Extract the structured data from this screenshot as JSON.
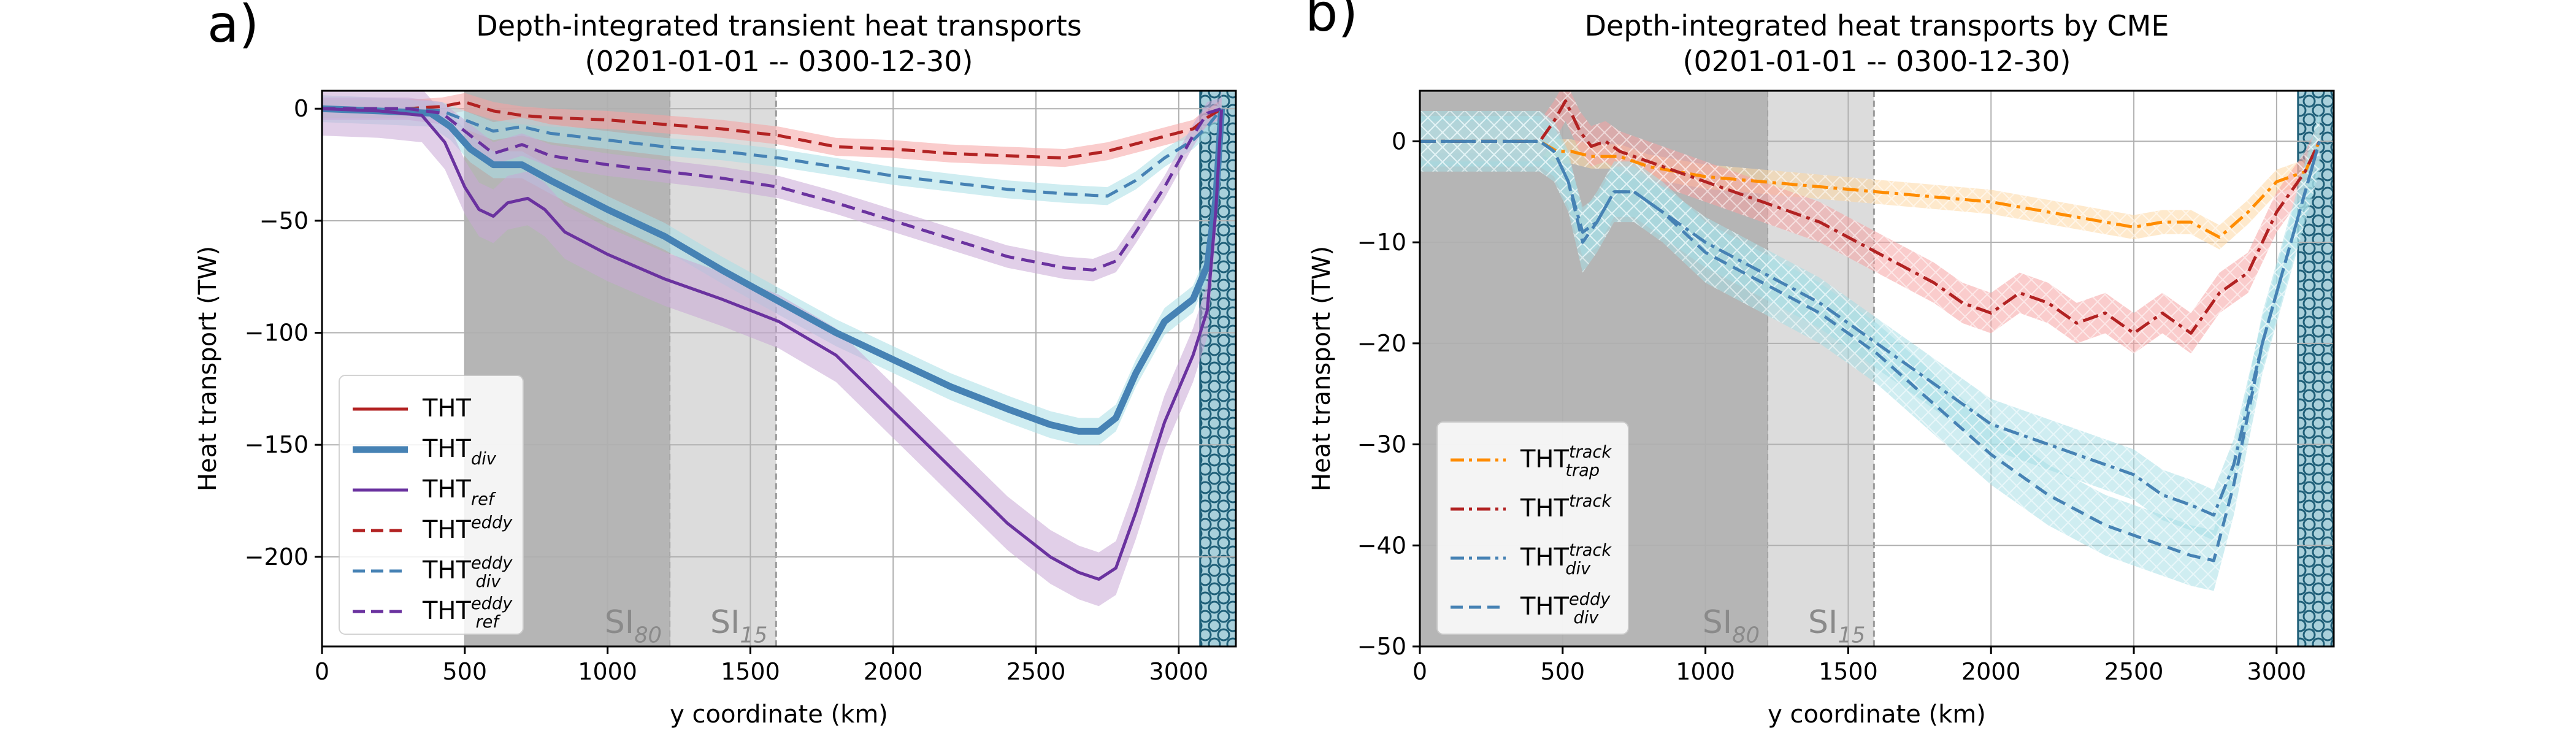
{
  "figure": {
    "panel_a_letter": "a)",
    "panel_b_letter": "b)"
  },
  "colors": {
    "red": "#b22222",
    "blue": "#4682b4",
    "purple": "#6a329f",
    "orange": "#ff8c00",
    "band_red": "#f6a3a3",
    "band_blue": "#a8dfe6",
    "band_purple": "#c9a7d6",
    "band_orange": "#fdd7a3",
    "ice_dark": "#b5b5b5",
    "ice_light": "#dcdcdc",
    "hatch": "#2f6f86"
  },
  "chart_data": [
    {
      "type": "line",
      "title": "Depth-integrated transient heat transports",
      "subtitle": "(0201-01-01 -- 0300-12-30)",
      "xlabel": "y coordinate (km)",
      "ylabel": "Heat transport (TW)",
      "xlim": [
        0,
        3200
      ],
      "ylim": [
        -240,
        8
      ],
      "xticks": [
        "0",
        "500",
        "1000",
        "1500",
        "2000",
        "2500",
        "3000"
      ],
      "yticks": [
        "0",
        "−50",
        "−100",
        "−150",
        "−200"
      ],
      "grid": true,
      "legend_position": "lower-left",
      "shaded_regions": [
        {
          "label": "SI",
          "label_sub": "80",
          "x_start": 500,
          "x_end": 1220,
          "shade": "dark"
        },
        {
          "label": "SI",
          "label_sub": "15",
          "x_start": 1220,
          "x_end": 1590,
          "shade": "light"
        },
        {
          "label": "",
          "x_start": 3075,
          "x_end": 3200,
          "shade": "hatched"
        }
      ],
      "series": [
        {
          "name": "THT",
          "name_sub": "",
          "name_sup": "",
          "color_key": "red",
          "style": "solid",
          "width": "thin",
          "x": [
            0,
            3200
          ],
          "y": [
            0,
            0
          ]
        },
        {
          "name": "THT",
          "name_sub": "div",
          "name_sup": "",
          "color_key": "blue",
          "style": "solid",
          "width": "thick",
          "x": [
            0,
            200,
            380,
            450,
            520,
            600,
            700,
            800,
            1000,
            1200,
            1400,
            1600,
            1800,
            2000,
            2200,
            2400,
            2550,
            2650,
            2720,
            2780,
            2850,
            2950,
            3050,
            3100,
            3130,
            3150
          ],
          "y": [
            0,
            -1,
            -2,
            -8,
            -18,
            -25,
            -25,
            -32,
            -45,
            -57,
            -72,
            -86,
            -100,
            -112,
            -124,
            -134,
            -141,
            -144,
            -144,
            -138,
            -118,
            -95,
            -85,
            -70,
            -40,
            0
          ],
          "band": 6
        },
        {
          "name": "THT",
          "name_sub": "ref",
          "name_sup": "",
          "color_key": "purple",
          "style": "solid",
          "width": "normal",
          "x": [
            0,
            200,
            350,
            430,
            500,
            550,
            600,
            650,
            720,
            780,
            850,
            1000,
            1200,
            1400,
            1600,
            1800,
            2000,
            2200,
            2400,
            2550,
            2650,
            2720,
            2780,
            2850,
            2950,
            3050,
            3100,
            3130,
            3150
          ],
          "y": [
            0,
            -1,
            -3,
            -15,
            -35,
            -45,
            -48,
            -42,
            -40,
            -45,
            -55,
            -65,
            -76,
            -85,
            -95,
            -110,
            -135,
            -160,
            -185,
            -200,
            -207,
            -210,
            -205,
            -180,
            -140,
            -110,
            -90,
            -45,
            0
          ],
          "band": 12
        },
        {
          "name": "THT",
          "name_sub": "",
          "name_sup": "eddy",
          "color_key": "red",
          "style": "dashed",
          "width": "normal",
          "x": [
            0,
            300,
            420,
            500,
            600,
            700,
            800,
            1000,
            1200,
            1400,
            1600,
            1800,
            2000,
            2200,
            2400,
            2600,
            2750,
            2900,
            3050,
            3100,
            3150
          ],
          "y": [
            0,
            0,
            1,
            3,
            -1,
            -3,
            -4,
            -5,
            -7,
            -9,
            -12,
            -17,
            -18,
            -20,
            -21,
            -22,
            -19,
            -14,
            -9,
            -4,
            0
          ],
          "band": 4
        },
        {
          "name": "THT",
          "name_sub": "div",
          "name_sup": "eddy",
          "color_key": "blue",
          "style": "dashed",
          "width": "normal",
          "x": [
            0,
            300,
            420,
            500,
            600,
            700,
            800,
            1000,
            1200,
            1400,
            1600,
            1800,
            2000,
            2200,
            2400,
            2600,
            2750,
            2850,
            2950,
            3050,
            3100,
            3150
          ],
          "y": [
            0,
            0,
            -1,
            -5,
            -10,
            -8,
            -11,
            -14,
            -17,
            -19,
            -22,
            -26,
            -30,
            -33,
            -36,
            -38,
            -39,
            -32,
            -22,
            -14,
            -8,
            0
          ],
          "band": 4
        },
        {
          "name": "THT",
          "name_sub": "ref",
          "name_sup": "eddy",
          "color_key": "purple",
          "style": "dashed",
          "width": "normal",
          "x": [
            0,
            300,
            420,
            500,
            600,
            700,
            800,
            1000,
            1200,
            1400,
            1600,
            1800,
            2000,
            2200,
            2400,
            2600,
            2700,
            2780,
            2850,
            2950,
            3050,
            3100,
            3150
          ],
          "y": [
            0,
            0,
            -2,
            -10,
            -20,
            -16,
            -21,
            -25,
            -28,
            -31,
            -35,
            -42,
            -50,
            -58,
            -66,
            -71,
            -72,
            -68,
            -55,
            -35,
            -12,
            -2,
            0
          ],
          "band": 5
        }
      ]
    },
    {
      "type": "line",
      "title": "Depth-integrated heat transports by CME",
      "subtitle": "(0201-01-01 -- 0300-12-30)",
      "xlabel": "y coordinate (km)",
      "ylabel": "Heat transport (TW)",
      "xlim": [
        0,
        3200
      ],
      "ylim": [
        -50,
        5
      ],
      "xticks": [
        "0",
        "500",
        "1000",
        "1500",
        "2000",
        "2500",
        "3000"
      ],
      "yticks": [
        "0",
        "−10",
        "−20",
        "−30",
        "−40",
        "−50"
      ],
      "grid": true,
      "legend_position": "lower-left",
      "shaded_regions": [
        {
          "label": "SI",
          "label_sub": "80",
          "x_start": 0,
          "x_end": 1220,
          "shade": "dark"
        },
        {
          "label": "SI",
          "label_sub": "15",
          "x_start": 1220,
          "x_end": 1590,
          "shade": "light"
        },
        {
          "label": "",
          "x_start": 3075,
          "x_end": 3200,
          "shade": "hatched"
        }
      ],
      "series": [
        {
          "name": "THT",
          "name_sub": "trap",
          "name_sup": "track",
          "color_key": "orange",
          "style": "dashdot",
          "width": "normal",
          "x": [
            0,
            350,
            420,
            480,
            530,
            600,
            700,
            800,
            1000,
            1200,
            1400,
            1600,
            1800,
            2000,
            2200,
            2400,
            2500,
            2600,
            2700,
            2800,
            2900,
            3000,
            3100,
            3150
          ],
          "y": [
            0,
            0,
            0,
            -1,
            -1,
            -1.5,
            -1.5,
            -2.5,
            -3.5,
            -4,
            -4.5,
            -5,
            -5.5,
            -6,
            -7,
            -8,
            -8.5,
            -8,
            -8,
            -9.5,
            -7,
            -4,
            -3,
            0
          ],
          "band": 1.2
        },
        {
          "name": "THT",
          "name_sup": "track",
          "name_sub": "",
          "color_key": "red",
          "style": "dashdot",
          "width": "normal",
          "x": [
            0,
            350,
            420,
            470,
            510,
            560,
            600,
            650,
            700,
            800,
            1000,
            1200,
            1400,
            1600,
            1800,
            1900,
            2000,
            2100,
            2200,
            2300,
            2400,
            2500,
            2600,
            2700,
            2800,
            2900,
            3000,
            3100,
            3150
          ],
          "y": [
            0,
            0,
            0,
            2,
            4,
            1,
            -0.5,
            0,
            -1,
            -2,
            -4,
            -6,
            -8,
            -11,
            -14,
            -16,
            -17,
            -15,
            -16,
            -18,
            -17,
            -19,
            -17,
            -19,
            -15,
            -13,
            -7,
            -3,
            0
          ],
          "band": 2
        },
        {
          "name": "THT",
          "name_sub": "div",
          "name_sup": "track",
          "color_key": "blue",
          "style": "dashdot",
          "width": "normal",
          "x": [
            0,
            350,
            420,
            470,
            520,
            570,
            620,
            680,
            750,
            850,
            1000,
            1200,
            1400,
            1600,
            1800,
            2000,
            2200,
            2400,
            2500,
            2600,
            2700,
            2780,
            2850,
            2950,
            3050,
            3150
          ],
          "y": [
            0,
            0,
            0,
            -1,
            -4,
            -9,
            -8,
            -5,
            -5,
            -7,
            -10,
            -13,
            -16,
            -20,
            -24,
            -28,
            -30,
            -32,
            -33,
            -35,
            -36,
            -37,
            -32,
            -20,
            -10,
            0
          ],
          "band": 2.5
        },
        {
          "name": "THT",
          "name_sub": "div",
          "name_sup": "eddy",
          "color_key": "blue",
          "style": "dashed",
          "width": "normal",
          "x": [
            0,
            350,
            420,
            470,
            520,
            570,
            620,
            680,
            750,
            850,
            1000,
            1200,
            1400,
            1600,
            1800,
            2000,
            2200,
            2400,
            2500,
            2600,
            2700,
            2780,
            2850,
            2950,
            3050,
            3150
          ],
          "y": [
            0,
            0,
            0,
            -1,
            -4,
            -10,
            -8,
            -5,
            -5,
            -7,
            -11,
            -14,
            -17,
            -21,
            -26,
            -31,
            -35,
            -38,
            -39,
            -40,
            -41,
            -41.5,
            -34,
            -20,
            -10,
            0
          ],
          "band": 3
        }
      ]
    }
  ]
}
